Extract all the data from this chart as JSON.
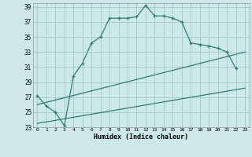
{
  "xlabel": "Humidex (Indice chaleur)",
  "bg_color": "#cce8e8",
  "grid_color": "#aacccc",
  "line_color": "#2e7d6e",
  "xlim": [
    -0.5,
    23.5
  ],
  "ylim": [
    23,
    39.5
  ],
  "xticks": [
    0,
    1,
    2,
    3,
    4,
    5,
    6,
    7,
    8,
    9,
    10,
    11,
    12,
    13,
    14,
    15,
    16,
    17,
    18,
    19,
    20,
    21,
    22,
    23
  ],
  "yticks": [
    23,
    25,
    27,
    29,
    31,
    33,
    35,
    37,
    39
  ],
  "series1_x": [
    0,
    1,
    2,
    3,
    4,
    5,
    6,
    7,
    8,
    9,
    10,
    11,
    12,
    13,
    14,
    15,
    16,
    17,
    18,
    19,
    20,
    21,
    22
  ],
  "series1_y": [
    27.2,
    25.8,
    25.0,
    23.2,
    29.8,
    31.5,
    34.2,
    35.0,
    37.5,
    37.5,
    37.5,
    37.7,
    39.2,
    37.8,
    37.8,
    37.5,
    37.0,
    34.2,
    34.0,
    33.8,
    33.5,
    33.0,
    30.8
  ],
  "series2_x": [
    0,
    23
  ],
  "series2_y": [
    23.5,
    28.2
  ],
  "series3_x": [
    0,
    23
  ],
  "series3_y": [
    26.0,
    33.0
  ]
}
